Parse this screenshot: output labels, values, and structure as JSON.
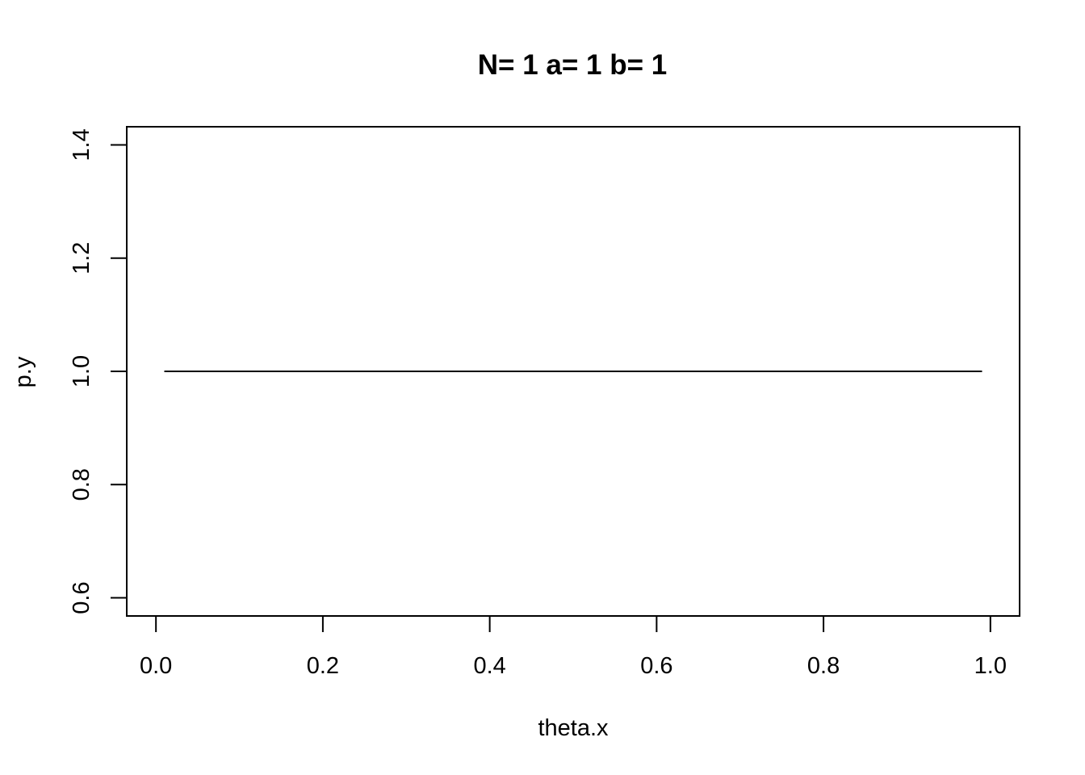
{
  "chart_data": {
    "type": "line",
    "title": "N= 1 a= 1 b= 1",
    "xlabel": "theta.x",
    "ylabel": "p.y",
    "xlim": [
      -0.035,
      1.035
    ],
    "ylim": [
      0.568,
      1.432
    ],
    "xticks": [
      0.0,
      0.2,
      0.4,
      0.6,
      0.8,
      1.0
    ],
    "xtick_labels": [
      "0.0",
      "0.2",
      "0.4",
      "0.6",
      "0.8",
      "1.0"
    ],
    "yticks": [
      0.6,
      0.8,
      1.0,
      1.2,
      1.4
    ],
    "ytick_labels": [
      "0.6",
      "0.8",
      "1.0",
      "1.2",
      "1.4"
    ],
    "grid": false,
    "series": [
      {
        "x": [
          0.01,
          0.99
        ],
        "y": [
          1.0,
          1.0
        ],
        "color": "#000000"
      }
    ]
  }
}
